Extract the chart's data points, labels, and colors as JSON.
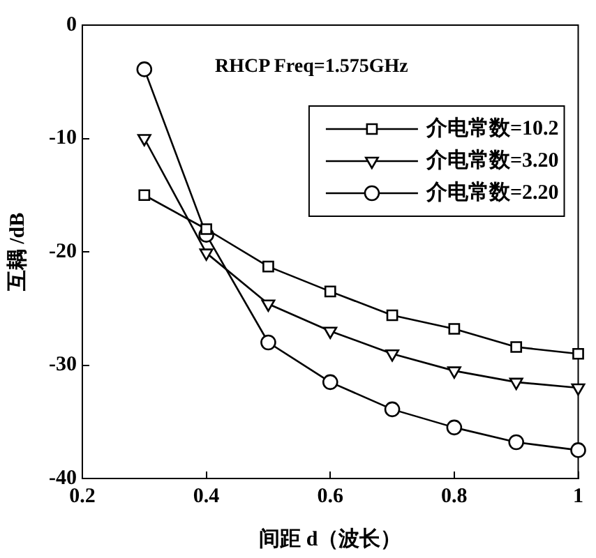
{
  "chart_data": {
    "type": "line",
    "xlabel": "间距 d（波长）",
    "ylabel": "互耦 /dB",
    "annotations": [
      "RHCP Freq=1.575GHz"
    ],
    "xlim": [
      0.2,
      1
    ],
    "xticks": [
      0.2,
      0.4,
      0.6,
      0.8,
      1
    ],
    "ylim": [
      -40,
      0
    ],
    "yticks": [
      -40,
      -30,
      -20,
      -10,
      0
    ],
    "grid": false,
    "legend": "top right",
    "line_style": "solid",
    "x": [
      0.3,
      0.4,
      0.5,
      0.6,
      0.7,
      0.8,
      0.9,
      1.0
    ],
    "series": [
      {
        "name": "介电常数=10.2",
        "color": "#000000",
        "marker": "square",
        "values": [
          -15,
          -18,
          -21.3,
          -23.5,
          -25.6,
          -26.8,
          -28.4,
          -29
        ]
      },
      {
        "name": "介电常数=3.20",
        "color": "#000000",
        "marker": "triangle",
        "values": [
          -10,
          -20.1,
          -24.6,
          -27,
          -29,
          -30.5,
          -31.5,
          -32
        ]
      },
      {
        "name": "介电常数=2.20",
        "color": "#000000",
        "marker": "circle",
        "values": [
          -3.9,
          -18.5,
          -28,
          -31.5,
          -33.9,
          -35.5,
          -36.8,
          -37.5
        ]
      }
    ]
  }
}
